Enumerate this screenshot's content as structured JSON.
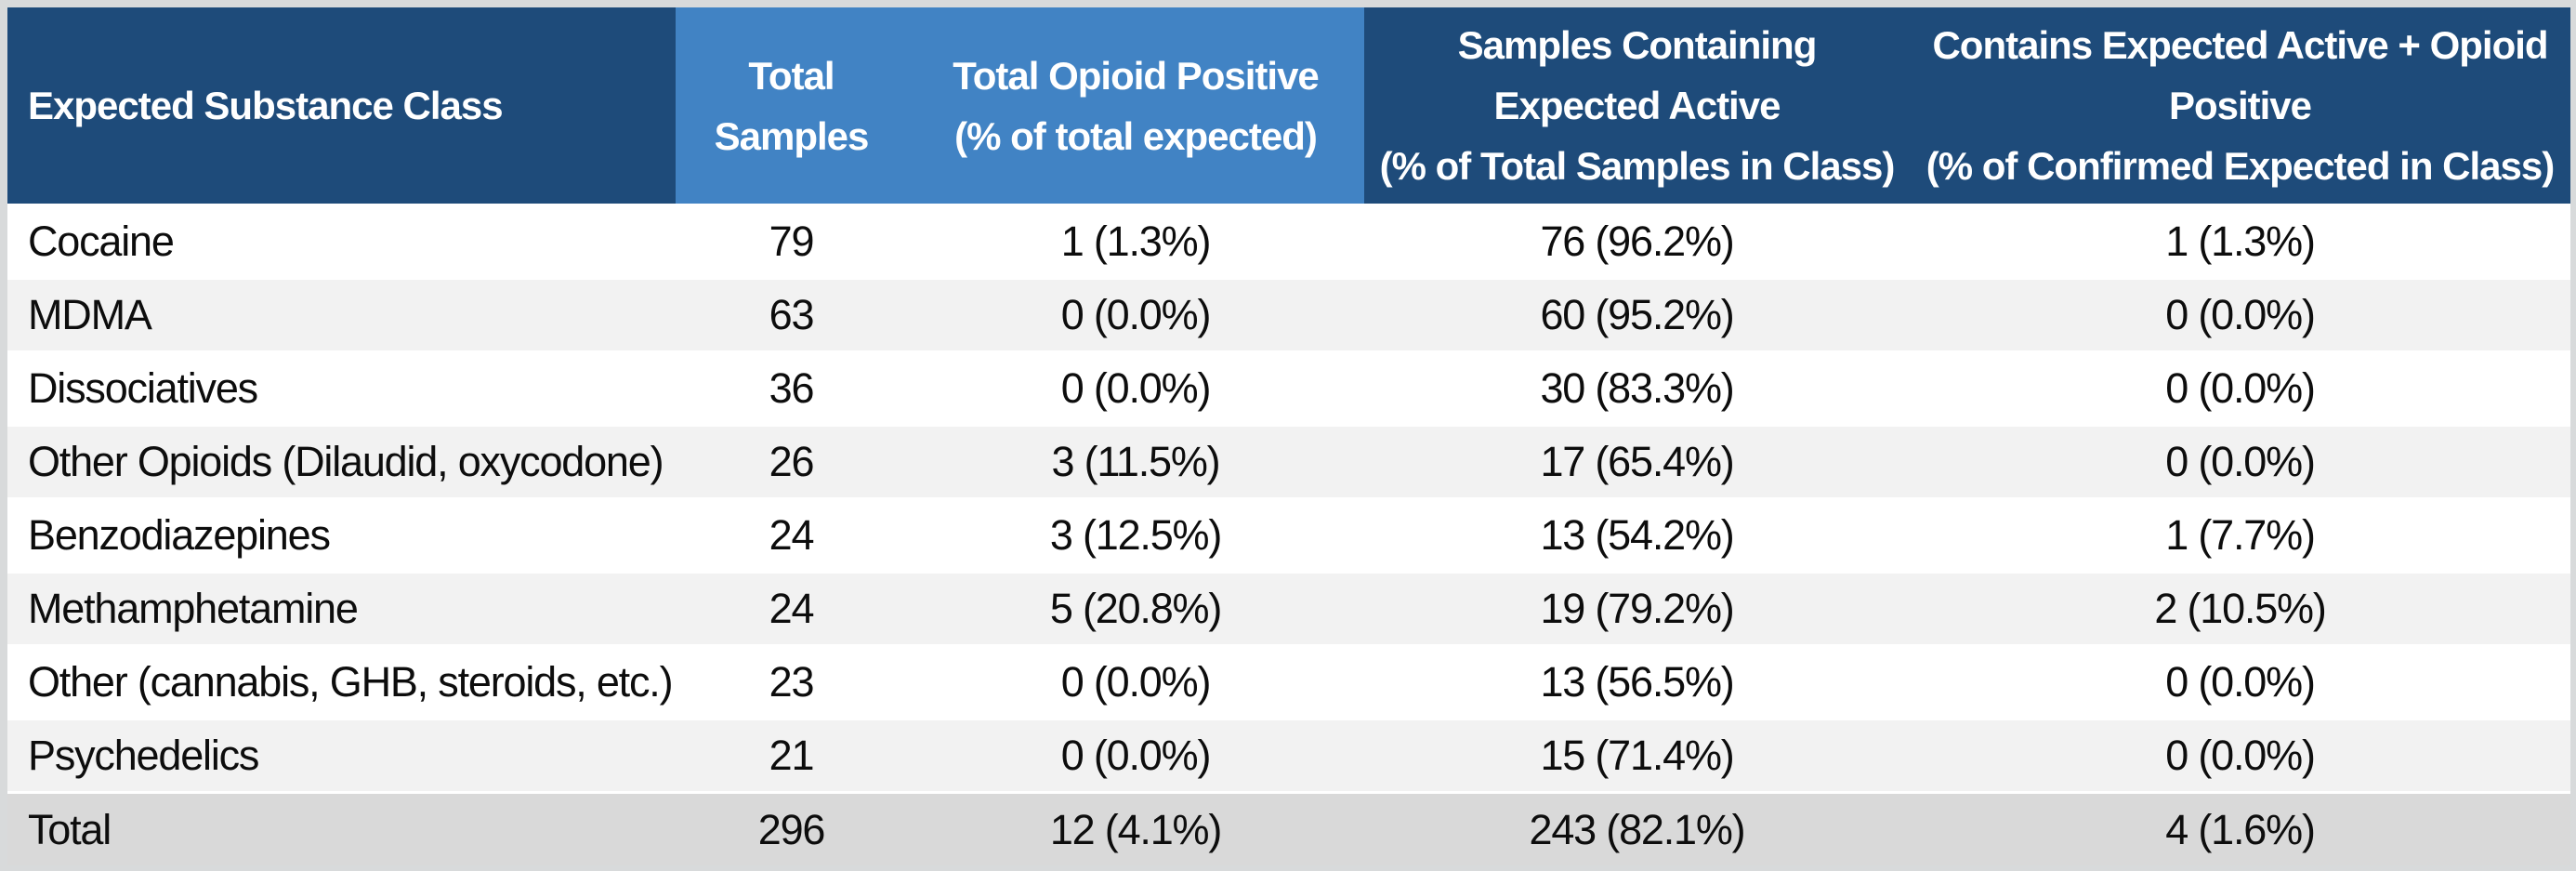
{
  "colors": {
    "header_dark_blue": "#1e4b7a",
    "header_light_blue": "#4183c4",
    "row_stripe_gray": "#f2f2f2",
    "total_row_gray": "#d9d9d9",
    "frame_gray": "#d8dadb",
    "header_text": "#ffffff",
    "body_text": "#0d0d0d"
  },
  "table": {
    "headers": [
      {
        "lines": [
          "Expected Substance Class"
        ]
      },
      {
        "lines": [
          "Total",
          "Samples"
        ]
      },
      {
        "lines": [
          "Total Opioid Positive",
          "(% of total expected)"
        ]
      },
      {
        "lines": [
          "Samples Containing",
          "Expected Active",
          "(% of Total Samples in Class)"
        ]
      },
      {
        "lines": [
          "Contains Expected Active + Opioid",
          "Positive",
          "(% of Confirmed Expected in Class)"
        ]
      }
    ],
    "rows": [
      {
        "cells": [
          "Cocaine",
          "79",
          "1 (1.3%)",
          "76 (96.2%)",
          "1 (1.3%)"
        ]
      },
      {
        "cells": [
          "MDMA",
          "63",
          "0 (0.0%)",
          "60 (95.2%)",
          "0 (0.0%)"
        ]
      },
      {
        "cells": [
          "Dissociatives",
          "36",
          "0 (0.0%)",
          "30 (83.3%)",
          "0 (0.0%)"
        ]
      },
      {
        "cells": [
          "Other Opioids (Dilaudid, oxycodone)",
          "26",
          "3 (11.5%)",
          "17 (65.4%)",
          "0 (0.0%)"
        ]
      },
      {
        "cells": [
          "Benzodiazepines",
          "24",
          "3 (12.5%)",
          "13 (54.2%)",
          "1 (7.7%)"
        ]
      },
      {
        "cells": [
          "Methamphetamine",
          "24",
          "5 (20.8%)",
          "19 (79.2%)",
          "2 (10.5%)"
        ]
      },
      {
        "cells": [
          "Other (cannabis, GHB, steroids, etc.)",
          "23",
          "0 (0.0%)",
          "13 (56.5%)",
          "0 (0.0%)"
        ]
      },
      {
        "cells": [
          "Psychedelics",
          "21",
          "0 (0.0%)",
          "15 (71.4%)",
          "0 (0.0%)"
        ]
      }
    ],
    "total_row": {
      "cells": [
        "Total",
        "296",
        "12 (4.1%)",
        "243 (82.1%)",
        "4 (1.6%)"
      ]
    }
  },
  "chart_data": {
    "type": "table",
    "title": "",
    "columns": [
      "Expected Substance Class",
      "Total Samples",
      "Total Opioid Positive (% of total expected)",
      "Samples Containing Expected Active (% of Total Samples in Class)",
      "Contains Expected Active + Opioid Positive (% of Confirmed Expected in Class)"
    ],
    "rows": [
      [
        "Cocaine",
        "79",
        "1 (1.3%)",
        "76 (96.2%)",
        "1 (1.3%)"
      ],
      [
        "MDMA",
        "63",
        "0 (0.0%)",
        "60 (95.2%)",
        "0 (0.0%)"
      ],
      [
        "Dissociatives",
        "36",
        "0 (0.0%)",
        "30 (83.3%)",
        "0 (0.0%)"
      ],
      [
        "Other Opioids (Dilaudid, oxycodone)",
        "26",
        "3 (11.5%)",
        "17 (65.4%)",
        "0 (0.0%)"
      ],
      [
        "Benzodiazepines",
        "24",
        "3 (12.5%)",
        "13 (54.2%)",
        "1 (7.7%)"
      ],
      [
        "Methamphetamine",
        "24",
        "5 (20.8%)",
        "19 (79.2%)",
        "2 (10.5%)"
      ],
      [
        "Other (cannabis, GHB, steroids, etc.)",
        "23",
        "0 (0.0%)",
        "13 (56.5%)",
        "0 (0.0%)"
      ],
      [
        "Psychedelics",
        "21",
        "0 (0.0%)",
        "15 (71.4%)",
        "0 (0.0%)"
      ],
      [
        "Total",
        "296",
        "12 (4.1%)",
        "243 (82.1%)",
        "4 (1.6%)"
      ]
    ]
  }
}
